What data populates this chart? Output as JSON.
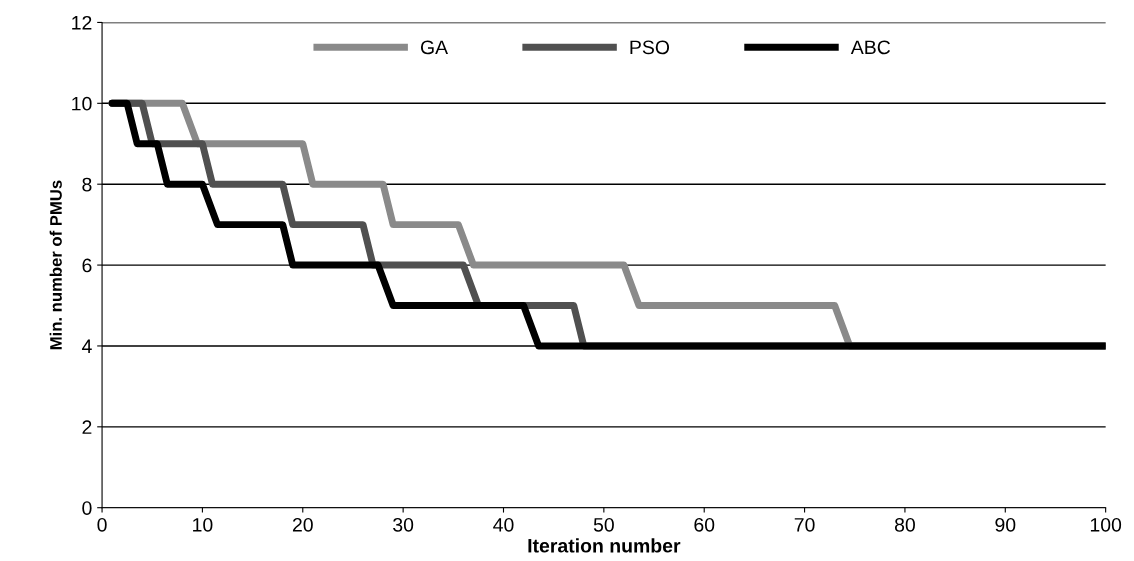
{
  "chart_data": {
    "type": "line",
    "xlabel": "Iteration number",
    "ylabel": "Min. number of PMUs",
    "xlim": [
      0,
      100
    ],
    "xticks": [
      0,
      10,
      20,
      30,
      40,
      50,
      60,
      70,
      80,
      90,
      100
    ],
    "ylim": [
      0,
      12
    ],
    "yticks": [
      0,
      2,
      4,
      6,
      8,
      10,
      12
    ],
    "grid": "y",
    "legend": "top",
    "marker": "none",
    "line_style": "solid",
    "series": [
      {
        "name": "GA",
        "color": "#8a8a8a",
        "x": [
          1,
          8,
          9.5,
          20,
          21,
          28,
          29,
          35.5,
          37,
          52,
          53.5,
          73,
          74.5,
          100
        ],
        "values": [
          10,
          10,
          9,
          9,
          8,
          8,
          7,
          7,
          6,
          6,
          5,
          5,
          4,
          4
        ]
      },
      {
        "name": "PSO",
        "color": "#505050",
        "x": [
          1,
          4,
          5,
          10,
          11,
          18,
          19,
          26,
          27,
          36,
          37.5,
          47,
          48,
          100
        ],
        "values": [
          10,
          10,
          9,
          9,
          8,
          8,
          7,
          7,
          6,
          6,
          5,
          5,
          4,
          4
        ]
      },
      {
        "name": "ABC",
        "color": "#000000",
        "x": [
          1,
          2.5,
          3.5,
          5.5,
          6.5,
          10,
          11.5,
          18,
          19,
          27.5,
          29,
          42,
          43.5,
          100
        ],
        "values": [
          10,
          10,
          9,
          9,
          8,
          8,
          7,
          7,
          6,
          6,
          5,
          5,
          4,
          4
        ]
      }
    ]
  }
}
